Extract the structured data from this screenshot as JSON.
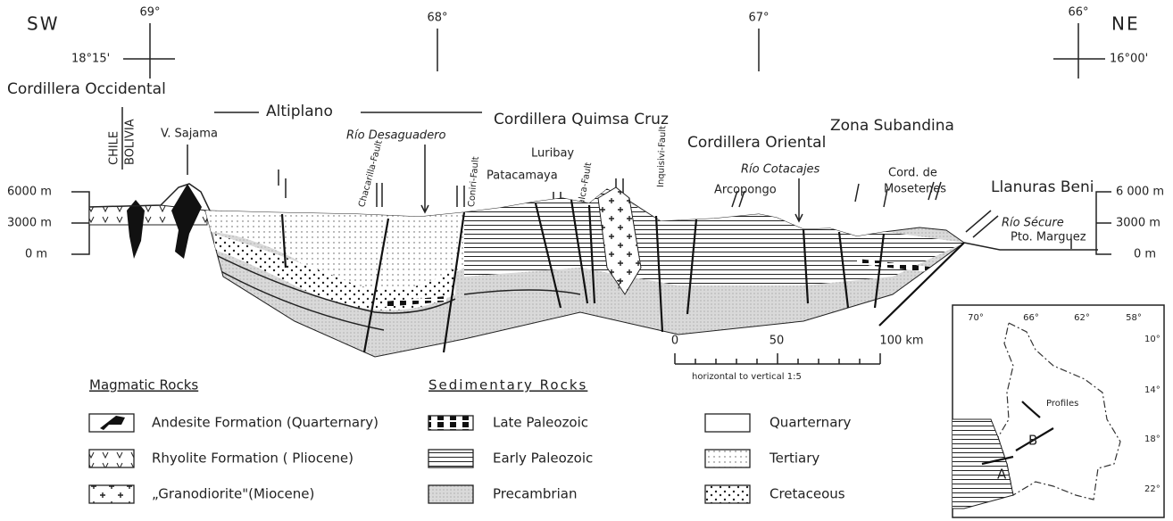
{
  "header": {
    "sw": "SW",
    "ne": "NE",
    "longitudes": [
      "69°",
      "68°",
      "67°",
      "66°"
    ],
    "latitudes": [
      "18°15'",
      "16°00'"
    ]
  },
  "regions": [
    "Cordillera Occidental",
    "Altiplano",
    "Cordillera Quimsa Cruz",
    "Cordillera Oriental",
    "Zona Subandina",
    "Llanuras Beni"
  ],
  "labels": {
    "chile": "CHILE",
    "bolivia": "BOLIVIA",
    "sajama": "V. Sajama",
    "desaguadero": "Río Desaguadero",
    "chacarilla": "Chacarilla-Fault",
    "coniri": "Coniri-Fault",
    "patacamaya": "Patacamaya",
    "luribay": "Luribay",
    "palca": "Palca-Fault",
    "inquisivi": "Inquisivi-Fault",
    "arcopongo": "Arcopongo",
    "cotacajes": "Río Cotacajes",
    "mosetenes_1": "Cord. de",
    "mosetenes_2": "Mosetenes",
    "secure": "Río Sécure",
    "marguez": "Pto. Marguez",
    "query": "?"
  },
  "elevation_left": [
    "6000 m",
    "3000 m",
    "0 m"
  ],
  "elevation_right": [
    "6 000 m",
    "3000 m",
    "0 m"
  ],
  "scale": {
    "ticks": [
      "0",
      "50",
      "100 km"
    ],
    "note": "horizontal to vertical 1:5"
  },
  "legend": {
    "magmatic": {
      "title": "Magmatic Rocks",
      "items": [
        "Andesite Formation (Quarternary)",
        "Rhyolite Formation ( Pliocene)",
        "„Granodiorite\"(Miocene)"
      ]
    },
    "sedimentary": {
      "title": "Sedimentary Rocks",
      "items": [
        "Late Paleozoic",
        "Early Paleozoic",
        "Precambrian",
        "Quarternary",
        "Tertiary",
        "Cretaceous"
      ]
    }
  },
  "inset": {
    "longitudes": [
      "70°",
      "66°",
      "62°",
      "58°"
    ],
    "latitudes": [
      "10°",
      "14°",
      "18°",
      "22°"
    ],
    "profiles": "Profiles",
    "a": "A",
    "b": "B"
  }
}
